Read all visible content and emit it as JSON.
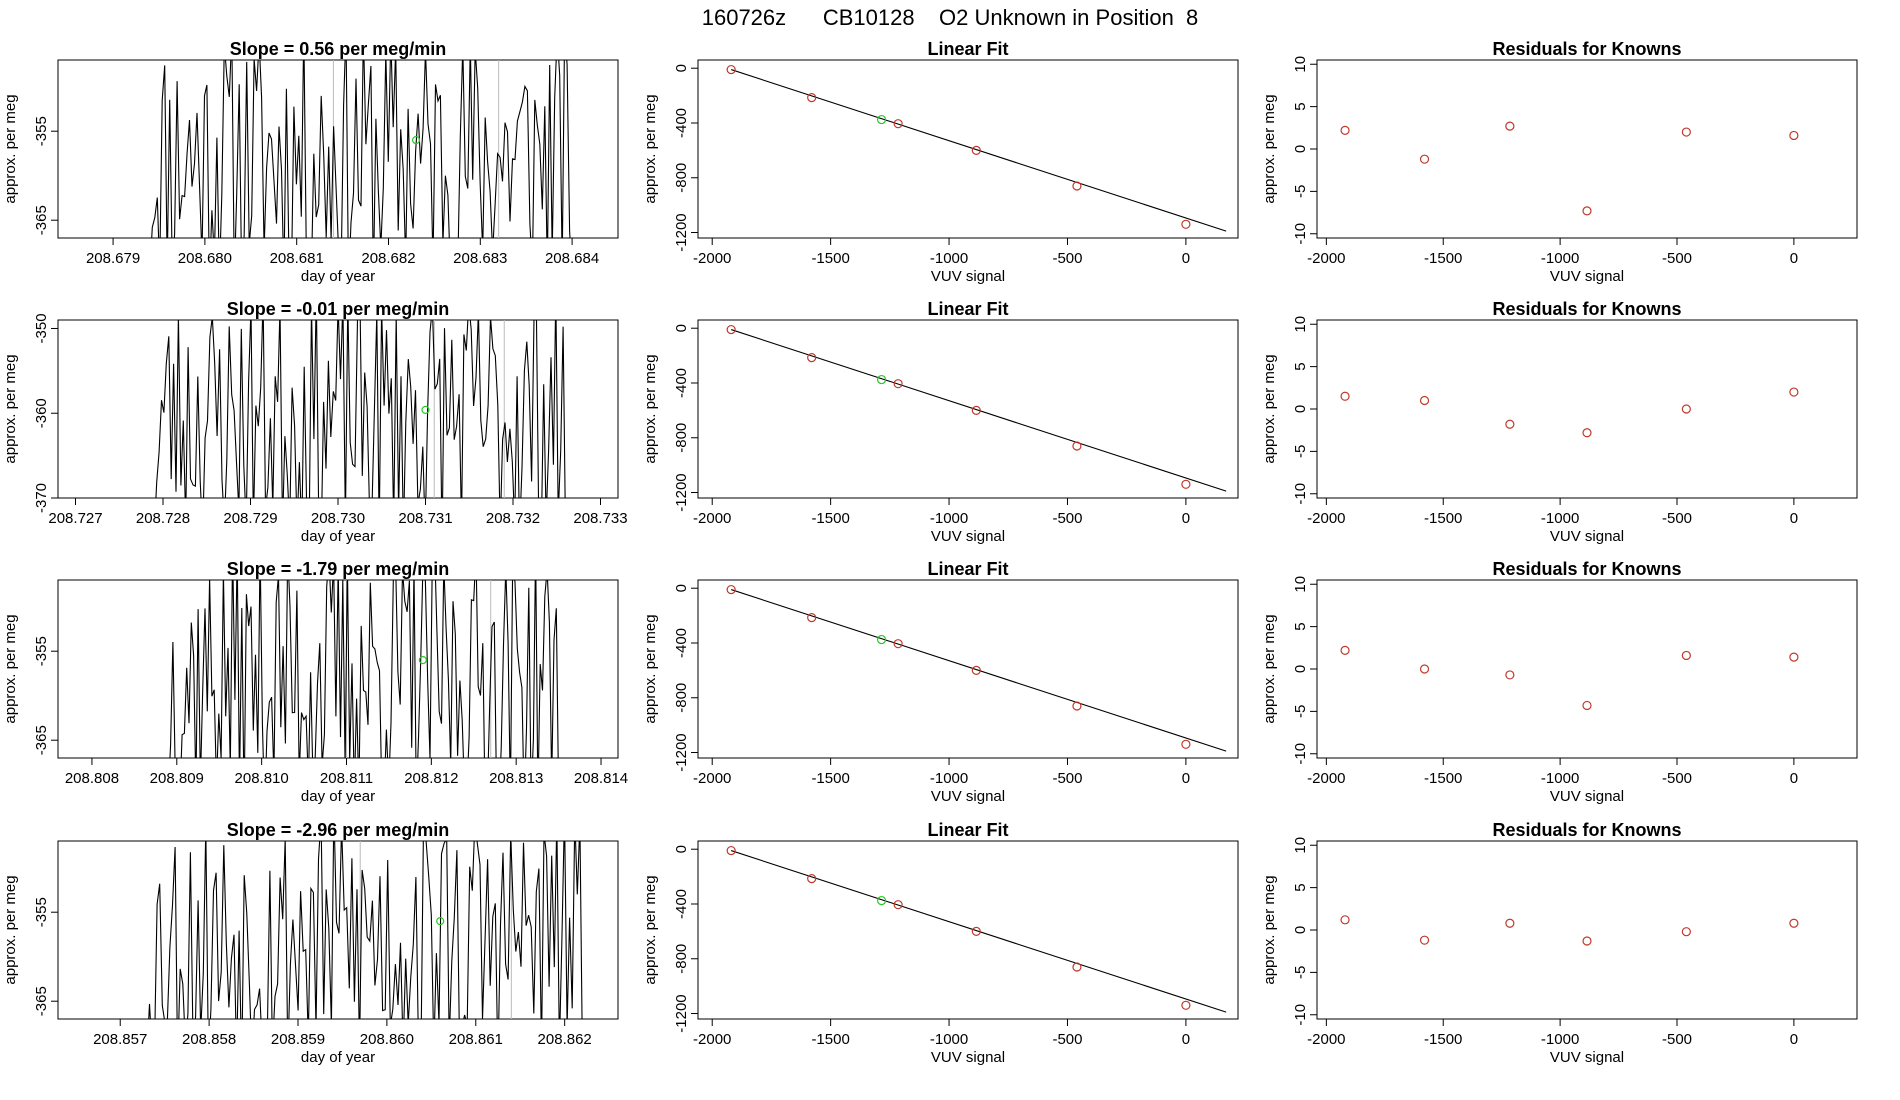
{
  "title": "160726z      CB10128    O2 Unknown in Position  8",
  "colors": {
    "line": "#000000",
    "known": "#c0392b",
    "unknown": "#22cc22",
    "frame": "#000000",
    "vline": "#bbbbbb"
  },
  "chart_data": [
    {
      "type": "line",
      "title": "Slope =  0.56  per meg/min",
      "xlabel": "day of year",
      "ylabel": "approx. per meg",
      "xlim": [
        208.6784,
        208.6845
      ],
      "ylim": [
        -367,
        -347
      ],
      "xticks": [
        "208.679",
        "208.680",
        "208.681",
        "208.682",
        "208.683",
        "208.684"
      ],
      "xtick_values": [
        208.679,
        208.68,
        208.681,
        208.682,
        208.683,
        208.684
      ],
      "yticks": [
        "-355",
        "-365"
      ],
      "ytick_values": [
        -355,
        -365
      ],
      "vlines": [
        208.6814,
        208.6832
      ],
      "unknown_point": {
        "x": 208.6823,
        "y": -356
      },
      "x_start": 208.6794,
      "x_end": 208.684,
      "seed": 11
    },
    {
      "type": "scatter",
      "title": "Linear Fit",
      "xlabel": "VUV signal",
      "ylabel": "approx. per meg",
      "xlim": [
        -2060,
        220
      ],
      "ylim": [
        -1240,
        60
      ],
      "xticks": [
        "-2000",
        "-1500",
        "-1000",
        "-500",
        "0"
      ],
      "xtick_values": [
        -2000,
        -1500,
        -1000,
        -500,
        0
      ],
      "yticks": [
        "0",
        "-400",
        "-800",
        "-1200"
      ],
      "ytick_values": [
        0,
        -400,
        -800,
        -1200
      ],
      "known_points": {
        "x": [
          -1920,
          -1580,
          -1215,
          -885,
          -460,
          0
        ],
        "y": [
          -10,
          -215,
          -405,
          -600,
          -860,
          -1140
        ]
      },
      "unknown_point": {
        "x": -1285,
        "y": -375
      },
      "fit_line": {
        "x": [
          -1920,
          170
        ],
        "y": [
          -10,
          -1190
        ]
      }
    },
    {
      "type": "scatter",
      "title": "Residuals for Knowns",
      "xlabel": "VUV signal",
      "ylabel": "approx. per meg",
      "xlim": [
        -2040,
        270
      ],
      "ylim": [
        -10.5,
        10.5
      ],
      "xticks": [
        "-2000",
        "-1500",
        "-1000",
        "-500",
        "0"
      ],
      "xtick_values": [
        -2000,
        -1500,
        -1000,
        -500,
        0
      ],
      "yticks": [
        "10",
        "5",
        "0",
        "-5",
        "-10"
      ],
      "ytick_values": [
        10,
        5,
        0,
        -5,
        -10
      ],
      "known_points": {
        "x": [
          -1920,
          -1580,
          -1215,
          -885,
          -460,
          0
        ],
        "y": [
          2.2,
          -1.2,
          2.7,
          -7.3,
          2.0,
          1.6
        ]
      }
    },
    {
      "type": "line",
      "title": "Slope =  -0.01  per meg/min",
      "xlabel": "day of year",
      "ylabel": "approx. per meg",
      "xlim": [
        208.7268,
        208.7332
      ],
      "ylim": [
        -370,
        -349
      ],
      "xticks": [
        "208.727",
        "208.728",
        "208.729",
        "208.730",
        "208.731",
        "208.732",
        "208.733"
      ],
      "xtick_values": [
        208.727,
        208.728,
        208.729,
        208.73,
        208.731,
        208.732,
        208.733
      ],
      "yticks": [
        "-350",
        "-360",
        "-370"
      ],
      "ytick_values": [
        -350,
        -360,
        -370
      ],
      "vlines": [
        208.7311,
        208.7319
      ],
      "unknown_point": {
        "x": 208.731,
        "y": -359.6
      },
      "x_start": 208.7279,
      "x_end": 208.7326,
      "seed": 23
    },
    {
      "type": "scatter",
      "title": "Linear Fit",
      "xlabel": "VUV signal",
      "ylabel": "approx. per meg",
      "xlim": [
        -2060,
        220
      ],
      "ylim": [
        -1240,
        60
      ],
      "xticks": [
        "-2000",
        "-1500",
        "-1000",
        "-500",
        "0"
      ],
      "xtick_values": [
        -2000,
        -1500,
        -1000,
        -500,
        0
      ],
      "yticks": [
        "0",
        "-400",
        "-800",
        "-1200"
      ],
      "ytick_values": [
        0,
        -400,
        -800,
        -1200
      ],
      "known_points": {
        "x": [
          -1920,
          -1580,
          -1215,
          -885,
          -460,
          0
        ],
        "y": [
          -10,
          -215,
          -405,
          -600,
          -860,
          -1140
        ]
      },
      "unknown_point": {
        "x": -1285,
        "y": -375
      },
      "fit_line": {
        "x": [
          -1920,
          170
        ],
        "y": [
          -10,
          -1190
        ]
      }
    },
    {
      "type": "scatter",
      "title": "Residuals for Knowns",
      "xlabel": "VUV signal",
      "ylabel": "approx. per meg",
      "xlim": [
        -2040,
        270
      ],
      "ylim": [
        -10.5,
        10.5
      ],
      "xticks": [
        "-2000",
        "-1500",
        "-1000",
        "-500",
        "0"
      ],
      "xtick_values": [
        -2000,
        -1500,
        -1000,
        -500,
        0
      ],
      "yticks": [
        "10",
        "5",
        "0",
        "-5",
        "-10"
      ],
      "ytick_values": [
        10,
        5,
        0,
        -5,
        -10
      ],
      "known_points": {
        "x": [
          -1920,
          -1580,
          -1215,
          -885,
          -460,
          0
        ],
        "y": [
          1.5,
          1.0,
          -1.8,
          -2.8,
          0.0,
          2.0
        ]
      }
    },
    {
      "type": "line",
      "title": "Slope =  -1.79  per meg/min",
      "xlabel": "day of year",
      "ylabel": "approx. per meg",
      "xlim": [
        208.8076,
        208.8142
      ],
      "ylim": [
        -367,
        -347
      ],
      "xticks": [
        "208.808",
        "208.809",
        "208.810",
        "208.811",
        "208.812",
        "208.813",
        "208.814"
      ],
      "xtick_values": [
        208.808,
        208.809,
        208.81,
        208.811,
        208.812,
        208.813,
        208.814
      ],
      "yticks": [
        "-355",
        "-365"
      ],
      "ytick_values": [
        -355,
        -365
      ],
      "vlines": [
        208.811,
        208.8127
      ],
      "unknown_point": {
        "x": 208.8119,
        "y": -356
      },
      "x_start": 208.8089,
      "x_end": 208.8135,
      "seed": 37
    },
    {
      "type": "scatter",
      "title": "Linear Fit",
      "xlabel": "VUV signal",
      "ylabel": "approx. per meg",
      "xlim": [
        -2060,
        220
      ],
      "ylim": [
        -1240,
        60
      ],
      "xticks": [
        "-2000",
        "-1500",
        "-1000",
        "-500",
        "0"
      ],
      "xtick_values": [
        -2000,
        -1500,
        -1000,
        -500,
        0
      ],
      "yticks": [
        "0",
        "-400",
        "-800",
        "-1200"
      ],
      "ytick_values": [
        0,
        -400,
        -800,
        -1200
      ],
      "known_points": {
        "x": [
          -1920,
          -1580,
          -1215,
          -885,
          -460,
          0
        ],
        "y": [
          -10,
          -215,
          -405,
          -600,
          -860,
          -1140
        ]
      },
      "unknown_point": {
        "x": -1285,
        "y": -375
      },
      "fit_line": {
        "x": [
          -1920,
          170
        ],
        "y": [
          -10,
          -1190
        ]
      }
    },
    {
      "type": "scatter",
      "title": "Residuals for Knowns",
      "xlabel": "VUV signal",
      "ylabel": "approx. per meg",
      "xlim": [
        -2040,
        270
      ],
      "ylim": [
        -10.5,
        10.5
      ],
      "xticks": [
        "-2000",
        "-1500",
        "-1000",
        "-500",
        "0"
      ],
      "xtick_values": [
        -2000,
        -1500,
        -1000,
        -500,
        0
      ],
      "yticks": [
        "10",
        "5",
        "0",
        "-5",
        "-10"
      ],
      "ytick_values": [
        10,
        5,
        0,
        -5,
        -10
      ],
      "known_points": {
        "x": [
          -1920,
          -1580,
          -1215,
          -885,
          -460,
          0
        ],
        "y": [
          2.2,
          0.0,
          -0.7,
          -4.3,
          1.6,
          1.4
        ]
      }
    },
    {
      "type": "line",
      "title": "Slope =  -2.96  per meg/min",
      "xlabel": "day of year",
      "ylabel": "approx. per meg",
      "xlim": [
        208.8563,
        208.8626
      ],
      "ylim": [
        -367,
        -347
      ],
      "xticks": [
        "208.857",
        "208.858",
        "208.859",
        "208.860",
        "208.861",
        "208.862"
      ],
      "xtick_values": [
        208.857,
        208.858,
        208.859,
        208.86,
        208.861,
        208.862
      ],
      "yticks": [
        "-355",
        "-365"
      ],
      "ytick_values": [
        -355,
        -365
      ],
      "vlines": [
        208.8597,
        208.8614
      ],
      "unknown_point": {
        "x": 208.8606,
        "y": -356
      },
      "x_start": 208.8573,
      "x_end": 208.8622,
      "seed": 53
    },
    {
      "type": "scatter",
      "title": "Linear Fit",
      "xlabel": "VUV signal",
      "ylabel": "approx. per meg",
      "xlim": [
        -2060,
        220
      ],
      "ylim": [
        -1240,
        60
      ],
      "xticks": [
        "-2000",
        "-1500",
        "-1000",
        "-500",
        "0"
      ],
      "xtick_values": [
        -2000,
        -1500,
        -1000,
        -500,
        0
      ],
      "yticks": [
        "0",
        "-400",
        "-800",
        "-1200"
      ],
      "ytick_values": [
        0,
        -400,
        -800,
        -1200
      ],
      "known_points": {
        "x": [
          -1920,
          -1580,
          -1215,
          -885,
          -460,
          0
        ],
        "y": [
          -10,
          -215,
          -405,
          -600,
          -860,
          -1140
        ]
      },
      "unknown_point": {
        "x": -1285,
        "y": -375
      },
      "fit_line": {
        "x": [
          -1920,
          170
        ],
        "y": [
          -10,
          -1190
        ]
      }
    },
    {
      "type": "scatter",
      "title": "Residuals for Knowns",
      "xlabel": "VUV signal",
      "ylabel": "approx. per meg",
      "xlim": [
        -2040,
        270
      ],
      "ylim": [
        -10.5,
        10.5
      ],
      "xticks": [
        "-2000",
        "-1500",
        "-1000",
        "-500",
        "0"
      ],
      "xtick_values": [
        -2000,
        -1500,
        -1000,
        -500,
        0
      ],
      "yticks": [
        "10",
        "5",
        "0",
        "-5",
        "-10"
      ],
      "ytick_values": [
        10,
        5,
        0,
        -5,
        -10
      ],
      "known_points": {
        "x": [
          -1920,
          -1580,
          -1215,
          -885,
          -460,
          0
        ],
        "y": [
          1.2,
          -1.2,
          0.8,
          -1.3,
          -0.2,
          0.8
        ]
      }
    }
  ]
}
